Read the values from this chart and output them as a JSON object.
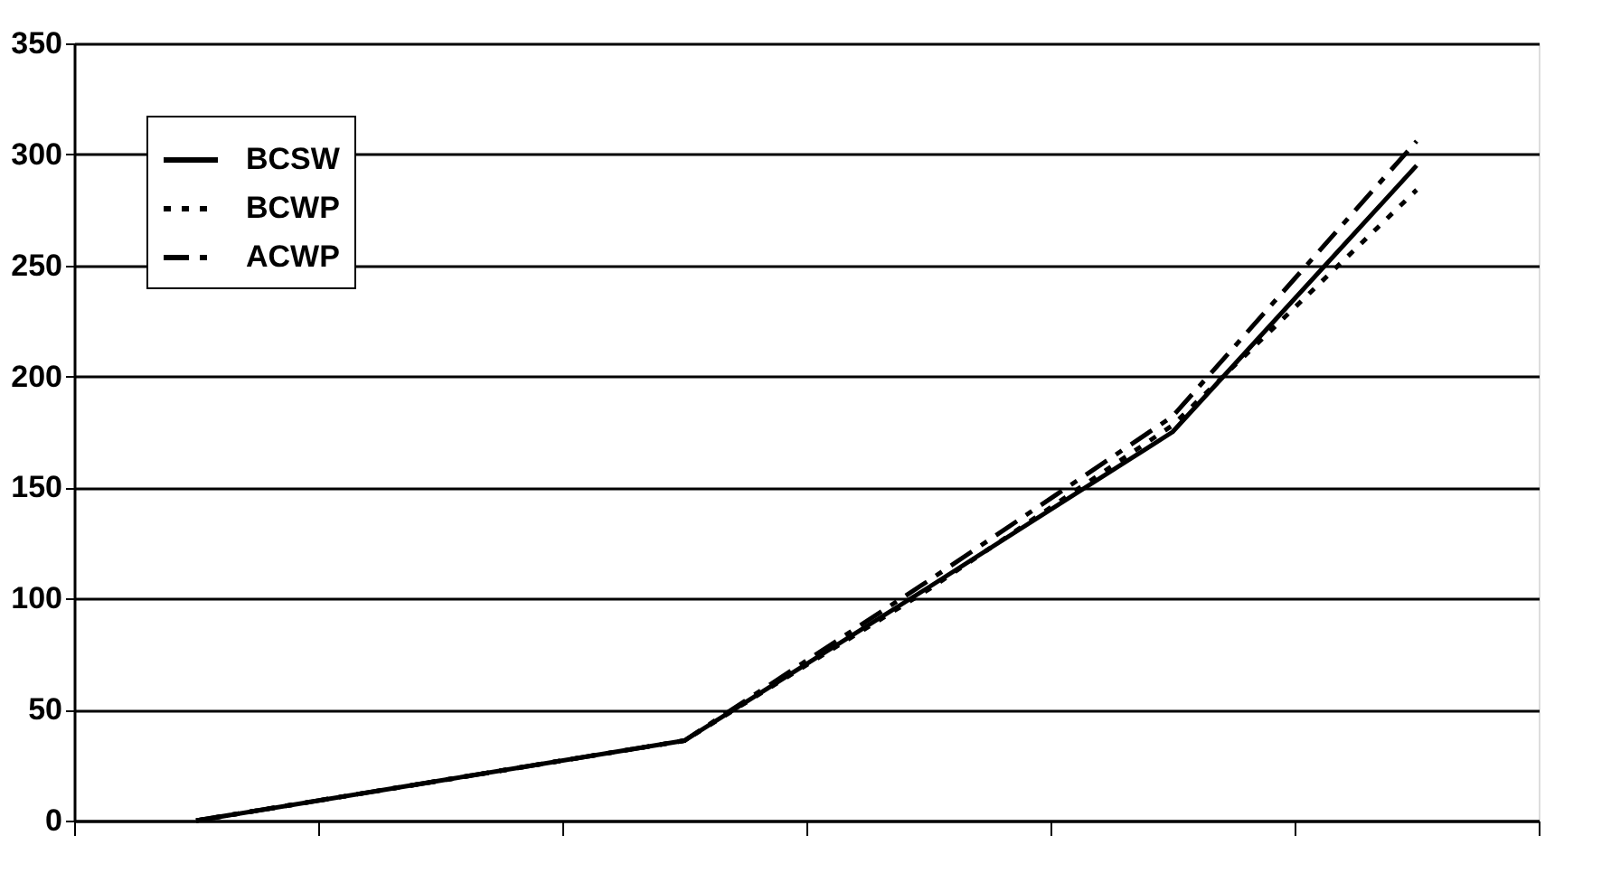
{
  "chart_data": {
    "type": "line",
    "categories": [
      null,
      null,
      null,
      null,
      null,
      null
    ],
    "series": [
      {
        "name": "BCSW",
        "color": "#000000",
        "line_style": "solid",
        "values": [
          0,
          18,
          36,
          105,
          175,
          295
        ]
      },
      {
        "name": "BCWP",
        "color": "#000000",
        "line_style": "dotted",
        "values": [
          0,
          18,
          36,
          104,
          178,
          284
        ]
      },
      {
        "name": "ACWP",
        "color": "#000000",
        "line_style": "dashed",
        "values": [
          0,
          18,
          36,
          108,
          182,
          306
        ]
      }
    ],
    "ylim": [
      0,
      350
    ],
    "yticks": [
      0,
      50,
      100,
      150,
      200,
      250,
      300,
      350
    ],
    "grid": "y",
    "legend": "top left",
    "marker": "none"
  }
}
